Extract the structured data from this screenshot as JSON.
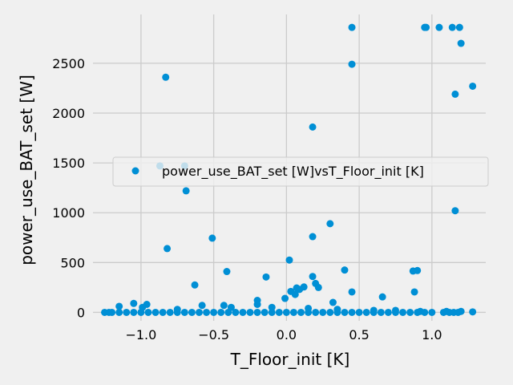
{
  "chart_data": {
    "type": "scatter",
    "title": "",
    "xlabel": "T_Floor_init [K]",
    "ylabel": "power_use_BAT_set [W]",
    "xlim": [
      -1.33,
      1.37
    ],
    "ylim": [
      -85,
      2990
    ],
    "xticks": [
      -1.0,
      -0.5,
      0.0,
      0.5,
      1.0
    ],
    "xtick_labels": [
      "−1.0",
      "−0.5",
      "0.0",
      "0.5",
      "1.0"
    ],
    "yticks": [
      0,
      500,
      1000,
      1500,
      2000,
      2500
    ],
    "ytick_labels": [
      "0",
      "500",
      "1000",
      "1500",
      "2000",
      "2500"
    ],
    "grid": true,
    "legend": {
      "position": "center-right",
      "entries": [
        "power_use_BAT_set [W]vsT_Floor_init [K]"
      ]
    },
    "series": [
      {
        "name": "power_use_BAT_set [W]vsT_Floor_init [K]",
        "color": "#008fd5",
        "x": [
          0.45,
          0.95,
          0.96,
          1.05,
          1.14,
          1.19,
          1.2,
          0.45,
          1.28,
          -0.83,
          1.16,
          0.18,
          -0.87,
          -0.7,
          -0.69,
          1.16,
          0.3,
          -0.51,
          -0.82,
          0.18,
          0.02,
          0.4,
          0.87,
          0.9,
          -0.41,
          0.18,
          -0.14,
          -0.63,
          0.2,
          0.07,
          0.22,
          0.12,
          0.09,
          0.06,
          0.45,
          0.88,
          0.03,
          -0.01,
          0.66,
          -0.2,
          0.32,
          -1.15,
          -1.05,
          -0.96,
          -0.99,
          -0.58,
          -0.75,
          -0.43,
          -0.38,
          -0.2,
          -0.1,
          0.15,
          0.35,
          0.6,
          0.75,
          0.92,
          1.1,
          1.2,
          1.28,
          -1.25,
          -1.2,
          -1.1,
          -1.0,
          -0.9,
          -0.8,
          -0.7,
          -0.6,
          -0.5,
          -0.4,
          -0.3,
          -0.2,
          -0.1,
          0.0,
          0.1,
          0.2,
          0.3,
          0.4,
          0.5,
          0.6,
          0.7,
          0.8,
          0.9,
          1.0,
          1.08,
          1.15,
          -1.22,
          -1.15,
          -1.05,
          -0.95,
          -0.85,
          -0.75,
          -0.65,
          -0.55,
          -0.45,
          -0.35,
          -0.25,
          -0.15,
          -0.05,
          0.05,
          0.15,
          0.25,
          0.35,
          0.45,
          0.55,
          0.65,
          0.75,
          0.85,
          0.95,
          1.12,
          1.18
        ],
        "y": [
          2860,
          2860,
          2860,
          2860,
          2860,
          2860,
          2700,
          2490,
          2270,
          2360,
          2190,
          1860,
          1470,
          1470,
          1220,
          1020,
          890,
          745,
          640,
          760,
          525,
          425,
          415,
          420,
          410,
          360,
          355,
          275,
          290,
          245,
          250,
          255,
          230,
          180,
          205,
          205,
          210,
          140,
          155,
          120,
          100,
          60,
          90,
          80,
          50,
          70,
          30,
          70,
          50,
          80,
          50,
          40,
          30,
          20,
          20,
          10,
          10,
          10,
          5,
          0,
          0,
          0,
          0,
          0,
          0,
          0,
          0,
          0,
          0,
          0,
          0,
          0,
          0,
          0,
          0,
          0,
          0,
          0,
          0,
          0,
          0,
          0,
          0,
          0,
          0,
          0,
          0,
          0,
          0,
          0,
          0,
          0,
          0,
          0,
          0,
          0,
          0,
          0,
          0,
          0,
          0,
          0,
          0,
          0,
          0,
          0,
          0,
          0,
          0,
          0
        ]
      }
    ]
  }
}
